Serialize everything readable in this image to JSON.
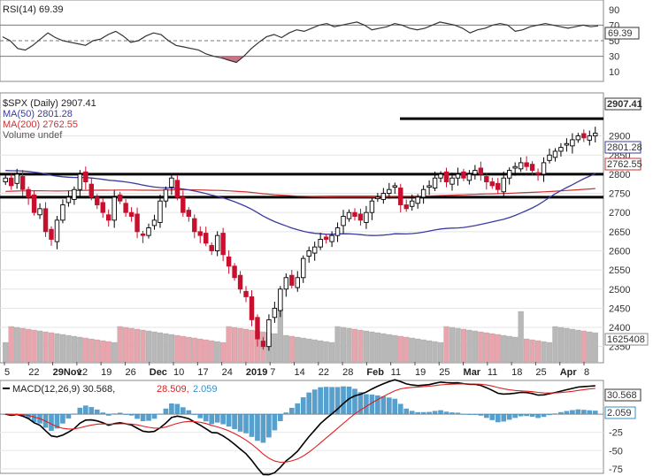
{
  "chart_data": [
    {
      "type": "line",
      "panel": "rsi",
      "title": "RSI(14) 69.39",
      "last_value_label": "69.39",
      "ylim": [
        0,
        100
      ],
      "y_ticks": [
        90,
        70,
        50,
        30,
        10
      ],
      "reference_lines": [
        70,
        50,
        30
      ],
      "series": [
        {
          "name": "RSI(14)",
          "values": [
            55,
            50,
            40,
            38,
            44,
            52,
            60,
            54,
            50,
            48,
            46,
            44,
            50,
            52,
            58,
            62,
            56,
            48,
            50,
            56,
            60,
            58,
            50,
            44,
            42,
            40,
            38,
            33,
            30,
            28,
            25,
            22,
            30,
            40,
            48,
            55,
            58,
            54,
            60,
            64,
            62,
            66,
            70,
            72,
            68,
            70,
            72,
            74,
            70,
            64,
            66,
            68,
            72,
            70,
            66,
            64,
            66,
            70,
            74,
            72,
            70,
            66,
            60,
            64,
            66,
            70,
            72,
            70,
            62,
            64,
            68,
            70,
            72,
            70,
            68,
            66,
            68,
            70,
            68,
            69
          ]
        }
      ],
      "colors": {
        "line": "#333333",
        "oversold_fill": "#c0506a"
      }
    },
    {
      "type": "candlestick",
      "panel": "price",
      "title": "$SPX (Daily) 2907.41",
      "ylim": [
        2310,
        3010
      ],
      "y_ticks": [
        2900,
        2850,
        2800,
        2750,
        2700,
        2650,
        2600,
        2550,
        2500,
        2450,
        2400,
        2350
      ],
      "x_labels": [
        "5",
        "22",
        "29Nov",
        "12",
        "19",
        "26",
        "Dec",
        "10",
        "17",
        "24",
        "2019",
        "7",
        "14",
        "22",
        "28",
        "Feb",
        "11",
        "19",
        "25",
        "Mar",
        "11",
        "18",
        "25",
        "Apr",
        "8"
      ],
      "x_labels_bold": [
        "Nov",
        "Dec",
        "2019",
        "Feb",
        "Mar",
        "Apr"
      ],
      "close": [
        2790,
        2770,
        2800,
        2760,
        2740,
        2700,
        2710,
        2650,
        2630,
        2680,
        2720,
        2740,
        2760,
        2800,
        2780,
        2740,
        2720,
        2700,
        2680,
        2740,
        2730,
        2700,
        2690,
        2650,
        2640,
        2660,
        2680,
        2730,
        2760,
        2790,
        2740,
        2700,
        2690,
        2650,
        2640,
        2620,
        2600,
        2640,
        2590,
        2560,
        2530,
        2500,
        2480,
        2420,
        2370,
        2350,
        2420,
        2450,
        2500,
        2530,
        2510,
        2530,
        2580,
        2600,
        2610,
        2630,
        2630,
        2640,
        2660,
        2690,
        2700,
        2690,
        2680,
        2700,
        2730,
        2740,
        2750,
        2760,
        2770,
        2720,
        2710,
        2730,
        2740,
        2760,
        2770,
        2790,
        2800,
        2780,
        2790,
        2800,
        2790,
        2800,
        2810,
        2800,
        2780,
        2770,
        2760,
        2790,
        2810,
        2820,
        2830,
        2820,
        2810,
        2800,
        2830,
        2850,
        2860,
        2870,
        2880,
        2890,
        2900,
        2895,
        2900,
        2907
      ],
      "ma_50": {
        "name": "MA(50) 2801.28",
        "last": 2801.28,
        "label": "2801.28"
      },
      "ma_200": {
        "name": "MA(200) 2762.55",
        "last": 2762.55,
        "label": "2762.55"
      },
      "volume": {
        "name": "Volume undef",
        "last_label": "1625408"
      },
      "horizontal_levels": [
        2945,
        2800,
        2740
      ],
      "last_price_label": "2907.41",
      "colors": {
        "up": "#000000",
        "down": "#c8102e",
        "ma50": "#3b3ba0",
        "ma200": "#cc3333",
        "vol_up": "#b8b8b8",
        "vol_down": "#e8a5ad"
      }
    },
    {
      "type": "line",
      "panel": "macd",
      "title": "MACD(12,26,9) 30.568, 28.509, 2.059",
      "macd_label": "MACD(12,26,9) 30.568,",
      "signal_label": "28.509,",
      "hist_label": "2.059",
      "ylim": [
        -80,
        45
      ],
      "y_ticks": [
        0,
        -25,
        -50,
        -75
      ],
      "last_labels": [
        "30.568",
        "2.059"
      ],
      "colors": {
        "macd": "#000000",
        "signal": "#e02020",
        "hist": "#3a8fc4"
      }
    }
  ]
}
